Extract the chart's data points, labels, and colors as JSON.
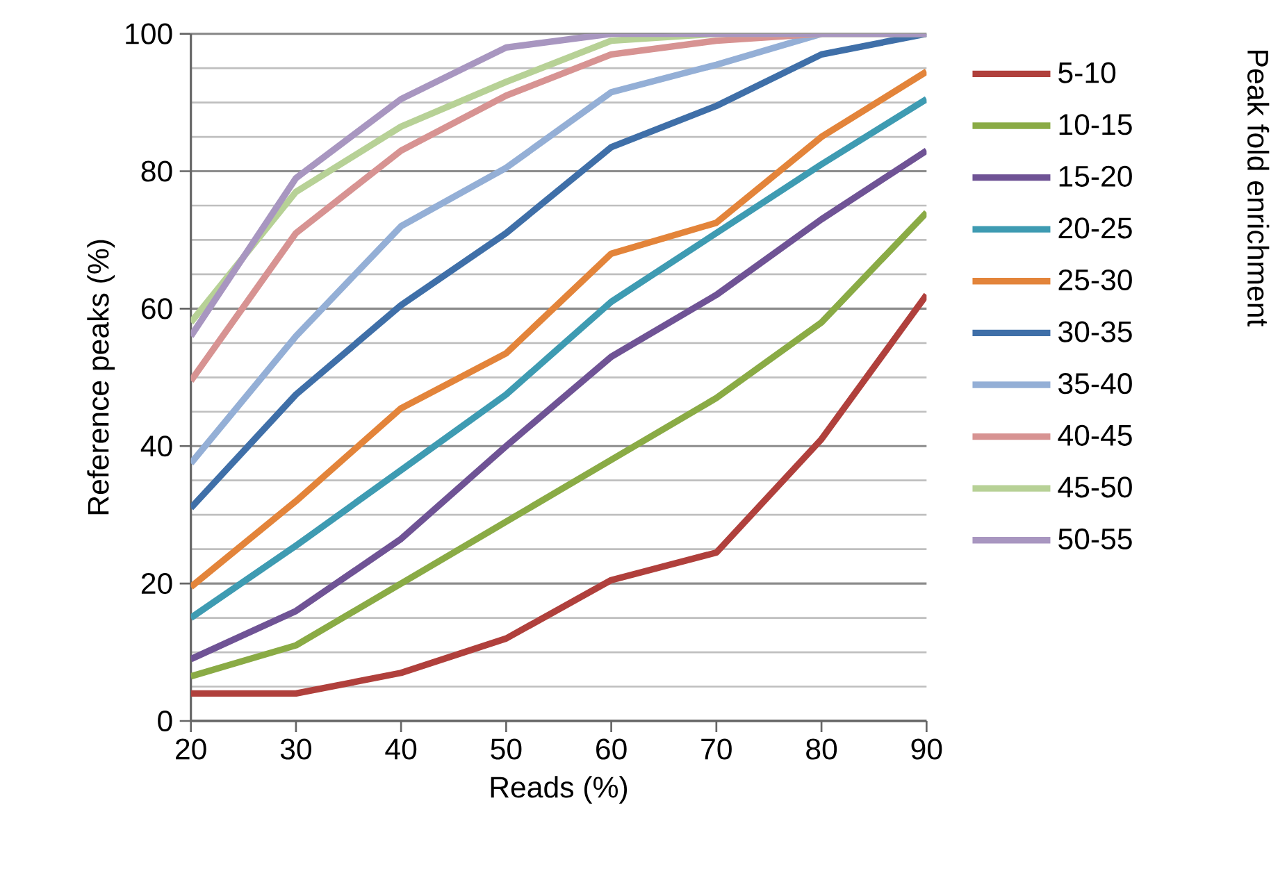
{
  "chart_data": {
    "type": "line",
    "xlabel": "Reads (%)",
    "ylabel": "Reference peaks (%)",
    "legend_title": "Peak fold enrichment",
    "x": [
      20,
      30,
      40,
      50,
      60,
      70,
      80,
      90
    ],
    "xlim": [
      20,
      90
    ],
    "xticks": [
      20,
      30,
      40,
      50,
      60,
      70,
      80,
      90
    ],
    "ylim": [
      0,
      100
    ],
    "yticks": [
      0,
      20,
      40,
      60,
      80,
      100
    ],
    "grid": "y",
    "legend": "right",
    "marker": "none",
    "line_style": "solid",
    "series": [
      {
        "name": "5-10",
        "color": "#b0403c",
        "values": [
          4,
          4,
          7,
          12,
          20.5,
          24.5,
          41,
          62
        ]
      },
      {
        "name": "10-15",
        "color": "#8aab45",
        "values": [
          6.5,
          11,
          20,
          29,
          38,
          47,
          58,
          74
        ]
      },
      {
        "name": "15-20",
        "color": "#6f5395",
        "values": [
          9,
          16,
          26.5,
          40,
          53,
          62,
          73,
          83
        ]
      },
      {
        "name": "20-25",
        "color": "#3e9bb2",
        "values": [
          15,
          25.5,
          36.5,
          47.5,
          61,
          71,
          81,
          90.5
        ]
      },
      {
        "name": "25-30",
        "color": "#e3843a",
        "values": [
          19.5,
          32,
          45.5,
          53.5,
          68,
          72.5,
          85,
          94.5
        ]
      },
      {
        "name": "30-35",
        "color": "#3f6fa8",
        "values": [
          31,
          47.5,
          60.5,
          71,
          83.5,
          89.5,
          97,
          100
        ]
      },
      {
        "name": "35-40",
        "color": "#94afd6",
        "values": [
          37.5,
          56,
          72,
          80.5,
          91.5,
          95.5,
          100,
          100
        ]
      },
      {
        "name": "40-45",
        "color": "#d79392",
        "values": [
          49.5,
          71,
          83,
          91,
          97,
          99,
          100,
          100
        ]
      },
      {
        "name": "45-50",
        "color": "#b7d196",
        "values": [
          58,
          77,
          86.5,
          93,
          99,
          100,
          100,
          100
        ]
      },
      {
        "name": "50-55",
        "color": "#a896c0",
        "values": [
          56,
          79,
          90.5,
          98,
          100,
          100,
          100,
          100
        ]
      }
    ]
  }
}
